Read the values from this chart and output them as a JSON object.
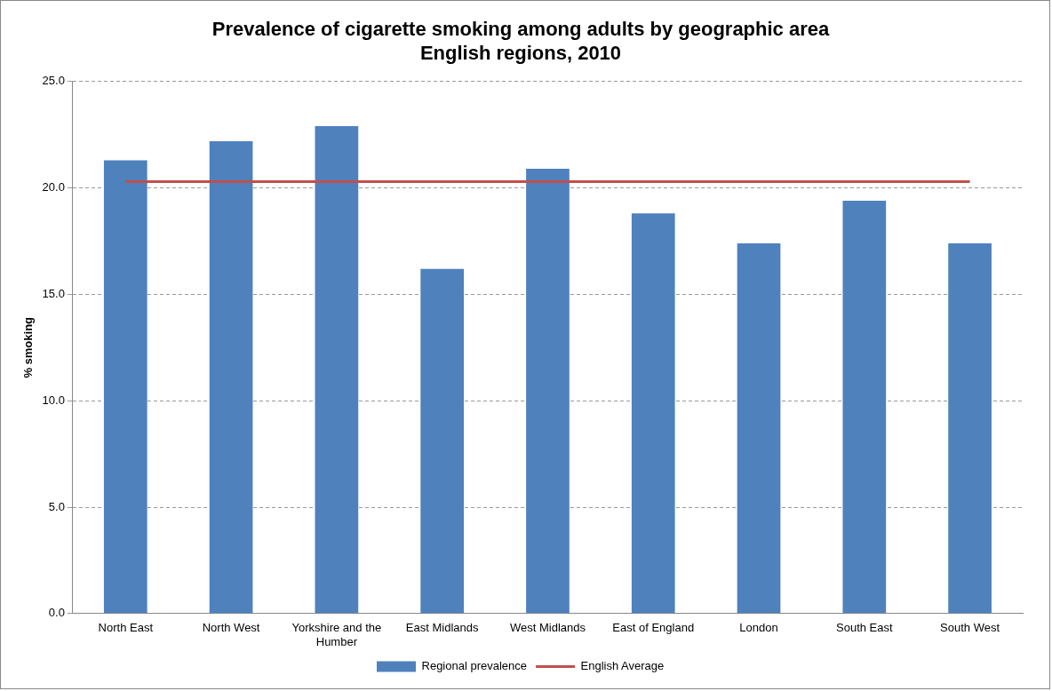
{
  "chart_data": {
    "type": "bar",
    "title": "Prevalence of cigarette smoking among adults by geographic area",
    "subtitle": "English regions, 2010",
    "ylabel": "% smoking",
    "categories": [
      "North East",
      "North West",
      "Yorkshire and the Humber",
      "East Midlands",
      "West Midlands",
      "East of England",
      "London",
      "South East",
      "South West"
    ],
    "series": [
      {
        "name": "Regional prevalence",
        "color": "#4f81bd",
        "values": [
          21.3,
          22.2,
          22.9,
          16.2,
          20.9,
          18.8,
          17.4,
          19.4,
          17.4
        ]
      },
      {
        "name": "English Average",
        "type": "line",
        "color": "#c0504d",
        "values": [
          20.3,
          20.3,
          20.3,
          20.3,
          20.3,
          20.3,
          20.3,
          20.3,
          20.3
        ]
      }
    ],
    "ylim": [
      0,
      25
    ],
    "yticks": [
      {
        "value": 0,
        "label": "0.0"
      },
      {
        "value": 5,
        "label": "5.0"
      },
      {
        "value": 10,
        "label": "10.0"
      },
      {
        "value": 15,
        "label": "15.0"
      },
      {
        "value": 20,
        "label": "20.0"
      },
      {
        "value": 25,
        "label": "25.0"
      }
    ],
    "grid": "y",
    "legend": "bottom",
    "marker": "none",
    "line_style": "solid"
  }
}
